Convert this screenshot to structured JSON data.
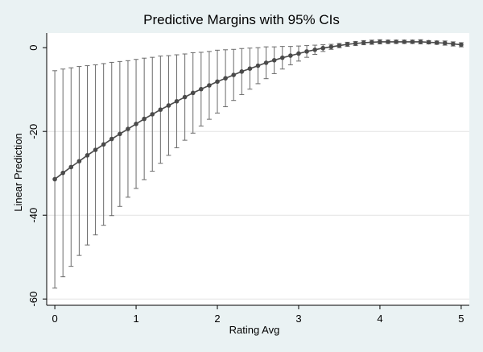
{
  "chart_data": {
    "type": "line",
    "title": "Predictive Margins with 95% CIs",
    "xlabel": "Rating Avg",
    "ylabel": "Linear Prediction",
    "xlim": [
      -0.1,
      5.1
    ],
    "ylim": [
      -61.5,
      3.5
    ],
    "x_ticks": [
      0,
      1,
      2,
      3,
      4,
      5
    ],
    "y_ticks": [
      0,
      -20,
      -40,
      -60
    ],
    "grid": true,
    "legend": "none",
    "colors": {
      "background": "#eaf2f3",
      "plot_area": "#ffffff",
      "series": "#4a4a4a",
      "ci": "#6a6a6a",
      "grid": "#e3e3e3"
    },
    "series": [
      {
        "x": [
          0,
          0.1,
          0.2,
          0.3,
          0.4,
          0.5,
          0.6,
          0.7,
          0.8,
          0.9,
          1.0,
          1.1,
          1.2,
          1.3,
          1.4,
          1.5,
          1.6,
          1.7,
          1.8,
          1.9,
          2.0,
          2.1,
          2.2,
          2.3,
          2.4,
          2.5,
          2.6,
          2.7,
          2.8,
          2.9,
          3.0,
          3.1,
          3.2,
          3.3,
          3.4,
          3.5,
          3.6,
          3.7,
          3.8,
          3.9,
          4.0,
          4.1,
          4.2,
          4.3,
          4.4,
          4.5,
          4.6,
          4.7,
          4.8,
          4.9,
          5.0
        ],
        "y": [
          -31.4,
          -29.9,
          -28.5,
          -27.1,
          -25.7,
          -24.4,
          -23.1,
          -21.8,
          -20.6,
          -19.4,
          -18.2,
          -17.0,
          -15.9,
          -14.8,
          -13.8,
          -12.8,
          -11.8,
          -10.8,
          -9.9,
          -9.0,
          -8.1,
          -7.3,
          -6.5,
          -5.7,
          -5.0,
          -4.3,
          -3.6,
          -3.0,
          -2.4,
          -1.9,
          -1.4,
          -0.9,
          -0.5,
          -0.1,
          0.2,
          0.5,
          0.8,
          1.0,
          1.2,
          1.3,
          1.4,
          1.4,
          1.4,
          1.4,
          1.4,
          1.4,
          1.3,
          1.2,
          1.1,
          0.9,
          0.7
        ],
        "ci_lower": [
          -57.4,
          -54.7,
          -52.2,
          -49.6,
          -47.1,
          -44.7,
          -42.4,
          -40.1,
          -37.9,
          -35.7,
          -33.6,
          -31.5,
          -29.5,
          -27.6,
          -25.7,
          -23.9,
          -22.1,
          -20.4,
          -18.7,
          -17.1,
          -15.6,
          -14.1,
          -12.6,
          -11.2,
          -9.9,
          -8.6,
          -7.4,
          -6.2,
          -5.1,
          -4.1,
          -3.2,
          -2.3,
          -1.6,
          -0.9,
          -0.4,
          0.0,
          0.3,
          0.5,
          0.7,
          0.8,
          0.9,
          1.0,
          1.0,
          1.0,
          1.0,
          0.9,
          0.9,
          0.8,
          0.6,
          0.4,
          0.2
        ],
        "ci_upper": [
          -5.5,
          -5.1,
          -4.8,
          -4.5,
          -4.3,
          -4.1,
          -3.8,
          -3.5,
          -3.3,
          -3.1,
          -2.8,
          -2.5,
          -2.3,
          -2.0,
          -1.9,
          -1.7,
          -1.5,
          -1.2,
          -1.1,
          -0.9,
          -0.6,
          -0.5,
          -0.4,
          -0.2,
          -0.1,
          0.0,
          0.2,
          0.2,
          0.3,
          0.3,
          0.4,
          0.5,
          0.6,
          0.7,
          0.8,
          1.0,
          1.3,
          1.5,
          1.7,
          1.8,
          1.9,
          1.8,
          1.8,
          1.8,
          1.8,
          1.9,
          1.7,
          1.6,
          1.6,
          1.4,
          1.2
        ]
      }
    ]
  }
}
